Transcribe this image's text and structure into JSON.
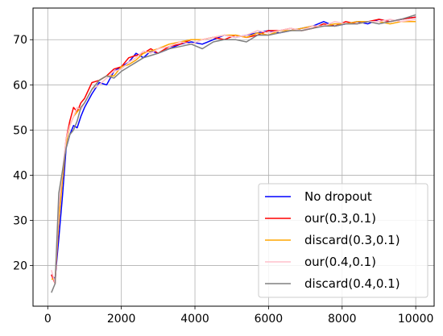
{
  "chart_data": {
    "type": "line",
    "title": "",
    "xlabel": "",
    "ylabel": "",
    "xlim": [
      -400,
      10500
    ],
    "ylim": [
      11,
      77
    ],
    "xticks": [
      0,
      2000,
      4000,
      6000,
      8000,
      10000
    ],
    "xtick_labels": [
      "0",
      "2000",
      "4000",
      "6000",
      "8000",
      "10000"
    ],
    "yticks": [
      20,
      30,
      40,
      50,
      60,
      70
    ],
    "ytick_labels": [
      "20",
      "30",
      "40",
      "50",
      "60",
      "70"
    ],
    "grid": true,
    "legend_position": "bottom-right",
    "x": [
      100,
      200,
      300,
      400,
      500,
      600,
      700,
      800,
      900,
      1000,
      1200,
      1400,
      1600,
      1800,
      2000,
      2200,
      2400,
      2600,
      2800,
      3000,
      3300,
      3600,
      3900,
      4200,
      4500,
      4800,
      5100,
      5400,
      5700,
      6000,
      6300,
      6600,
      6900,
      7200,
      7500,
      7800,
      8100,
      8400,
      8700,
      9000,
      9300,
      9600,
      10000
    ],
    "series": [
      {
        "name": "No dropout",
        "color": "#0000ff",
        "values": [
          18,
          17,
          26,
          35.5,
          46,
          49,
          51,
          50.5,
          53,
          55,
          58,
          60.5,
          60,
          63,
          64,
          65,
          67,
          66,
          67.5,
          67,
          68,
          69,
          69.5,
          69,
          70,
          71,
          70.5,
          71,
          71.5,
          72,
          71.5,
          72,
          72.5,
          73,
          74,
          73,
          73.5,
          74,
          73.5,
          74.5,
          74,
          74.5,
          75
        ]
      },
      {
        "name": "our(0.3,0.1)",
        "color": "#ff0000",
        "values": [
          18,
          16,
          30,
          40,
          48,
          52,
          55,
          54,
          56,
          57,
          60.5,
          61,
          62,
          63.5,
          64,
          66,
          66.5,
          67,
          68,
          67,
          68.5,
          69,
          70,
          70,
          70.5,
          70,
          71,
          70.5,
          71,
          72,
          72,
          72.5,
          72,
          72.5,
          73.5,
          73,
          74,
          73.5,
          74,
          74.5,
          74,
          74.5,
          75
        ]
      },
      {
        "name": "discard(0.3,0.1)",
        "color": "#ffa500",
        "values": [
          17,
          17,
          30,
          39,
          47,
          51,
          53,
          54,
          55,
          56,
          59,
          61,
          62,
          62,
          64,
          64.5,
          65.5,
          67,
          67.5,
          68,
          69,
          69.5,
          70,
          70,
          70.5,
          71,
          71,
          70.5,
          71.5,
          71,
          72,
          72,
          72.5,
          73,
          73,
          73.5,
          73.5,
          74,
          74,
          74,
          73.5,
          74,
          74
        ]
      },
      {
        "name": "our(0.4,0.1)",
        "color": "#ffc0cb",
        "values": [
          19,
          16,
          33,
          41,
          48,
          51,
          53,
          55,
          54.5,
          56,
          59,
          60,
          61.5,
          63,
          63.5,
          65,
          66,
          67.5,
          67,
          68,
          68.5,
          69.5,
          69,
          70,
          70.5,
          71,
          70.5,
          71,
          72,
          71.5,
          72,
          72.5,
          72,
          73,
          73,
          74,
          73.5,
          73.5,
          74,
          74,
          74.5,
          74,
          74.5
        ]
      },
      {
        "name": "discard(0.4,0.1)",
        "color": "#808080",
        "values": [
          14,
          16,
          36,
          41,
          46,
          49,
          50,
          52,
          55,
          56,
          59,
          61,
          62,
          61.5,
          63,
          64,
          65,
          66,
          66.5,
          67,
          68,
          68.5,
          69,
          68,
          69.5,
          70,
          70,
          69.5,
          71,
          71,
          71.5,
          72,
          72,
          72.5,
          73,
          73,
          73.5,
          73.5,
          74,
          73.5,
          74,
          74.5,
          75.5
        ]
      }
    ]
  }
}
